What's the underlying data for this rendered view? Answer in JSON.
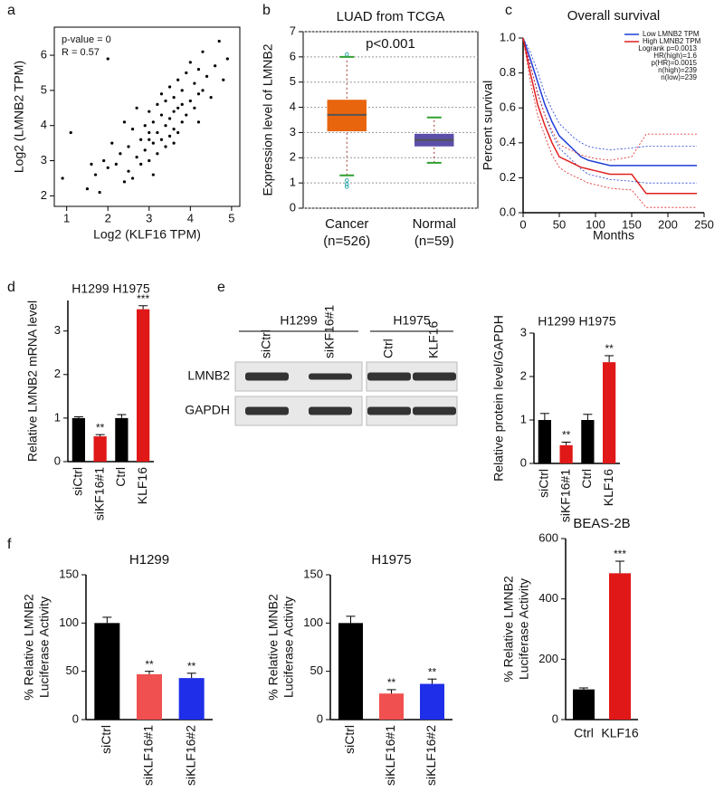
{
  "chart_data": [
    {
      "type": "scatter",
      "label": "a",
      "x_label": "Log2 (KLF16 TPM)",
      "y_label": "Log2 (LMNB2 TPM)",
      "annotations": [
        "p-value = 0",
        "R = 0.57"
      ],
      "x": [
        0.9,
        1.1,
        1.5,
        1.6,
        1.7,
        1.8,
        1.9,
        2.0,
        2.1,
        2.2,
        2.3,
        2.4,
        2.5,
        2.5,
        2.6,
        2.7,
        2.7,
        2.8,
        2.8,
        2.9,
        2.9,
        3.0,
        3.0,
        3.0,
        3.1,
        3.1,
        3.2,
        3.2,
        3.2,
        3.3,
        3.3,
        3.3,
        3.4,
        3.4,
        3.4,
        3.5,
        3.5,
        3.5,
        3.6,
        3.6,
        3.6,
        3.7,
        3.7,
        3.7,
        3.8,
        3.8,
        3.8,
        3.9,
        3.9,
        4.0,
        4.0,
        4.1,
        4.1,
        4.2,
        4.2,
        4.3,
        4.3,
        4.4,
        4.5,
        4.6,
        4.7,
        4.8,
        4.9,
        2.0,
        2.6,
        3.1,
        3.6,
        4.2,
        3.0,
        2.4
      ],
      "values": [
        2.5,
        3.8,
        2.2,
        2.9,
        2.6,
        2.1,
        3.0,
        2.8,
        3.5,
        2.9,
        3.2,
        4.1,
        3.4,
        2.7,
        3.9,
        3.1,
        4.5,
        3.6,
        2.9,
        4.0,
        3.3,
        3.8,
        4.4,
        3.0,
        4.1,
        3.5,
        4.6,
        3.8,
        3.2,
        4.3,
        3.6,
        4.9,
        4.0,
        3.4,
        4.7,
        4.2,
        3.7,
        5.1,
        4.4,
        3.9,
        4.8,
        4.5,
        3.8,
        5.3,
        4.6,
        4.1,
        5.0,
        4.3,
        5.5,
        4.7,
        5.8,
        4.5,
        5.2,
        4.9,
        5.6,
        5.0,
        6.1,
        5.4,
        4.8,
        5.7,
        6.4,
        5.3,
        5.9,
        5.9,
        2.5,
        2.6,
        3.5,
        4.1,
        3.6,
        2.4
      ],
      "color": "#000000",
      "xlim": [
        0.7,
        5.2
      ],
      "xticks": [
        1,
        2,
        3,
        4,
        5
      ],
      "ylim": [
        1.7,
        6.8
      ],
      "yticks": [
        2,
        3,
        4,
        5,
        6
      ]
    },
    {
      "type": "box",
      "label": "b",
      "title": "LUAD from TCGA",
      "annotations": [
        "p<0.001"
      ],
      "y_label": "Expression level of LMNB2",
      "categories": [
        [
          "Cancer",
          "(n=526)"
        ],
        [
          "Normal",
          "(n=59)"
        ]
      ],
      "boxes": [
        {
          "low": 1.3,
          "q1": 3.05,
          "median": 3.7,
          "q3": 4.3,
          "high": 6.0,
          "outliers": [
            6.1,
            1.1,
            0.95,
            0.85
          ],
          "color": "#e8650e"
        },
        {
          "low": 1.8,
          "q1": 2.45,
          "median": 2.7,
          "q3": 2.95,
          "high": 3.6,
          "outliers": [],
          "color": "#5b4ea8"
        }
      ],
      "ylim": [
        0,
        7
      ],
      "yticks": [
        0,
        1,
        2,
        3,
        4,
        5,
        6,
        7
      ],
      "grid": true
    },
    {
      "type": "survival",
      "label": "c",
      "title": "Overall survival",
      "x_label": "Months",
      "y_label": "Percent survival",
      "annotations": [
        "Logrank p=0.0013",
        "HR(high)=1.6",
        "p(HR)=0.0015",
        "n(high)=239",
        "n(low)=239"
      ],
      "series": [
        {
          "name": "Low LMNB2 TPM",
          "color": "#1f3fd6",
          "x": [
            0,
            10,
            20,
            30,
            40,
            50,
            60,
            70,
            80,
            90,
            100,
            120,
            150,
            170,
            240
          ],
          "values": [
            1,
            0.88,
            0.75,
            0.62,
            0.52,
            0.44,
            0.4,
            0.36,
            0.32,
            0.3,
            0.29,
            0.27,
            0.27,
            0.27,
            0.27
          ],
          "lower": [
            1,
            0.84,
            0.69,
            0.56,
            0.45,
            0.37,
            0.33,
            0.29,
            0.25,
            0.22,
            0.21,
            0.19,
            0.18,
            0.17,
            0.17
          ],
          "upper": [
            1,
            0.92,
            0.81,
            0.68,
            0.59,
            0.51,
            0.47,
            0.43,
            0.4,
            0.38,
            0.37,
            0.36,
            0.37,
            0.38,
            0.38
          ]
        },
        {
          "name": "High LMNB2 TPM",
          "color": "#e02020",
          "x": [
            0,
            10,
            20,
            30,
            40,
            50,
            60,
            70,
            80,
            90,
            100,
            120,
            150,
            170,
            240
          ],
          "values": [
            1,
            0.8,
            0.62,
            0.5,
            0.4,
            0.32,
            0.3,
            0.28,
            0.26,
            0.25,
            0.24,
            0.22,
            0.22,
            0.11,
            0.11
          ],
          "lower": [
            1,
            0.75,
            0.56,
            0.44,
            0.33,
            0.26,
            0.23,
            0.21,
            0.19,
            0.17,
            0.16,
            0.14,
            0.13,
            0.03,
            0.03
          ],
          "upper": [
            1,
            0.85,
            0.68,
            0.56,
            0.47,
            0.39,
            0.37,
            0.35,
            0.33,
            0.32,
            0.31,
            0.3,
            0.32,
            0.45,
            0.45
          ]
        }
      ],
      "xlim": [
        0,
        250
      ],
      "xticks": [
        0,
        50,
        100,
        150,
        200,
        250
      ],
      "ylim": [
        0,
        1
      ],
      "yticks": [
        {
          "value": 0,
          "label": "0.0"
        },
        0.2,
        0.4,
        0.6,
        0.8,
        {
          "value": 1,
          "label": "1.0"
        }
      ]
    },
    {
      "type": "bar",
      "label": "d",
      "subtitle": "H1299 H1975",
      "y_label": "Relative LMNB2 mRNA level",
      "categories": [
        "siCtrl",
        "siKF16#1",
        "Ctrl",
        "KLF16"
      ],
      "values": [
        1.0,
        0.58,
        1.0,
        3.5
      ],
      "errors": [
        0.03,
        0.04,
        0.08,
        0.08
      ],
      "annotations": [
        null,
        "**",
        null,
        "***"
      ],
      "colors": [
        "#000000",
        "#e01818",
        "#000000",
        "#e01818"
      ],
      "ylim": [
        0,
        3.7
      ],
      "yticks": [
        0,
        1,
        2,
        3
      ]
    },
    {
      "type": "bar",
      "label": "e",
      "subtitle": "H1299 H1975",
      "y_label": "Relative protein level/GAPDH",
      "categories": [
        "siCtrl",
        "siKF16#1",
        "Ctrl",
        "KLF16"
      ],
      "values": [
        1.0,
        0.42,
        1.0,
        2.33
      ],
      "errors": [
        0.15,
        0.07,
        0.13,
        0.15
      ],
      "annotations": [
        null,
        "**",
        null,
        "**"
      ],
      "colors": [
        "#000000",
        "#e01818",
        "#000000",
        "#e01818"
      ],
      "ylim": [
        0,
        3
      ],
      "yticks": [
        0,
        1,
        2,
        3
      ]
    },
    {
      "type": "bar",
      "label": "f",
      "title": "H1299",
      "y_label": [
        "% Relative LMNB2",
        "Luciferase Activity"
      ],
      "categories": [
        "siCtrl",
        "siKLF16#1",
        "siKLF16#2"
      ],
      "values": [
        100,
        47,
        43
      ],
      "errors": [
        6,
        3,
        5
      ],
      "annotations": [
        null,
        "**",
        "**"
      ],
      "colors": [
        "#000000",
        "#f05050",
        "#1f2ee8"
      ],
      "ylim": [
        0,
        150
      ],
      "yticks": [
        0,
        50,
        100,
        150
      ]
    },
    {
      "type": "bar",
      "title": "H1975",
      "y_label": [
        "% Relative LMNB2",
        "Luciferase Activity"
      ],
      "categories": [
        "siCtrl",
        "siKLF16#1",
        "siKLF16#2"
      ],
      "values": [
        100,
        27,
        37
      ],
      "errors": [
        7,
        4,
        5
      ],
      "annotations": [
        null,
        "**",
        "**"
      ],
      "colors": [
        "#000000",
        "#f05050",
        "#1f2ee8"
      ],
      "ylim": [
        0,
        150
      ],
      "yticks": [
        0,
        50,
        100,
        150
      ]
    },
    {
      "type": "bar",
      "title": "BEAS-2B",
      "y_label": [
        "% Relative LMNB2",
        "Luciferase Activity"
      ],
      "categories": [
        "Ctrl",
        "KLF16"
      ],
      "values": [
        100,
        485
      ],
      "errors": [
        5,
        40
      ],
      "annotations": [
        null,
        "***"
      ],
      "colors": [
        "#000000",
        "#e01818"
      ],
      "ylim": [
        0,
        600
      ],
      "yticks": [
        0,
        200,
        400,
        600
      ]
    }
  ],
  "western_blot": {
    "groups": [
      "H1299",
      "H1975"
    ],
    "lanes": [
      "siCtrl",
      "siKF16#1",
      "Ctrl",
      "KLF16"
    ],
    "rows": [
      "LMNB2",
      "GAPDH"
    ]
  }
}
